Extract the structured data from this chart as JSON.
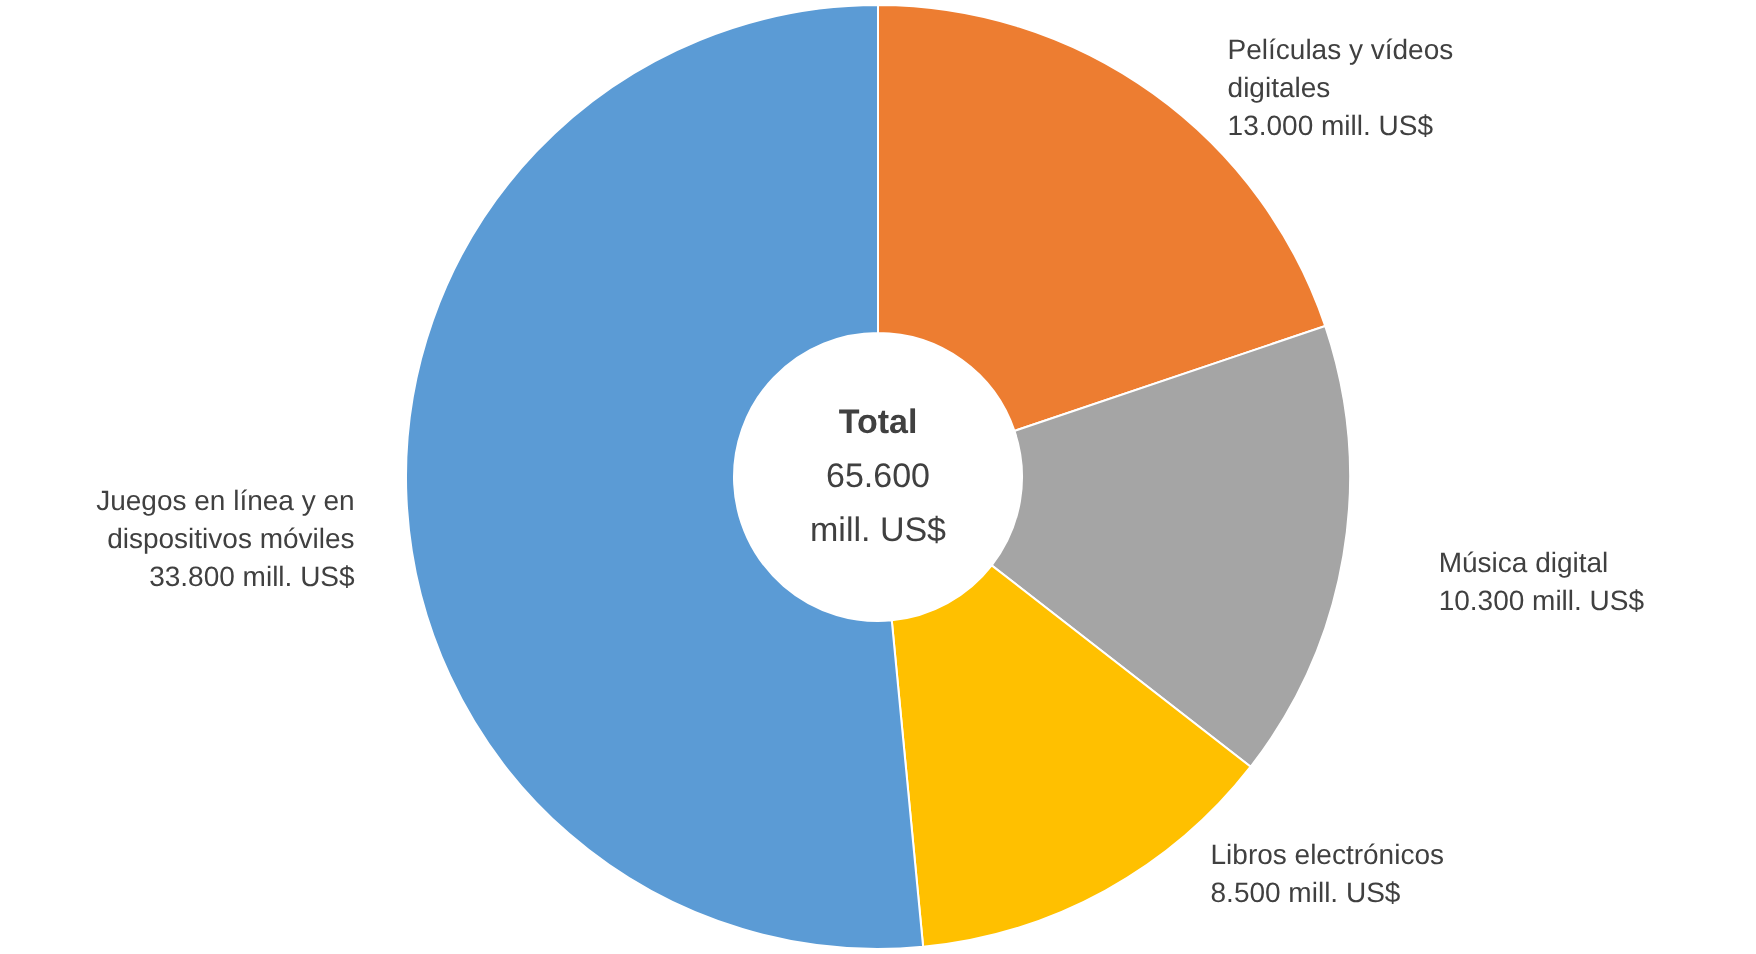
{
  "chart_data": {
    "type": "donut",
    "categories": [
      "Películas y vídeos digitales",
      "Música digital",
      "Libros electrónicos",
      "Juegos en línea y en dispositivos móviles"
    ],
    "values": [
      13000,
      10300,
      8500,
      33800
    ],
    "colors": [
      "#ed7d31",
      "#a5a5a5",
      "#ffc000",
      "#5b9bd5"
    ],
    "value_labels": [
      "13.000 mill. US$",
      "10.300 mill. US$",
      "8.500 mill. US$",
      "33.800 mill. US$"
    ],
    "annotations": [
      "Total",
      "65.600 mill. US$"
    ]
  }
}
